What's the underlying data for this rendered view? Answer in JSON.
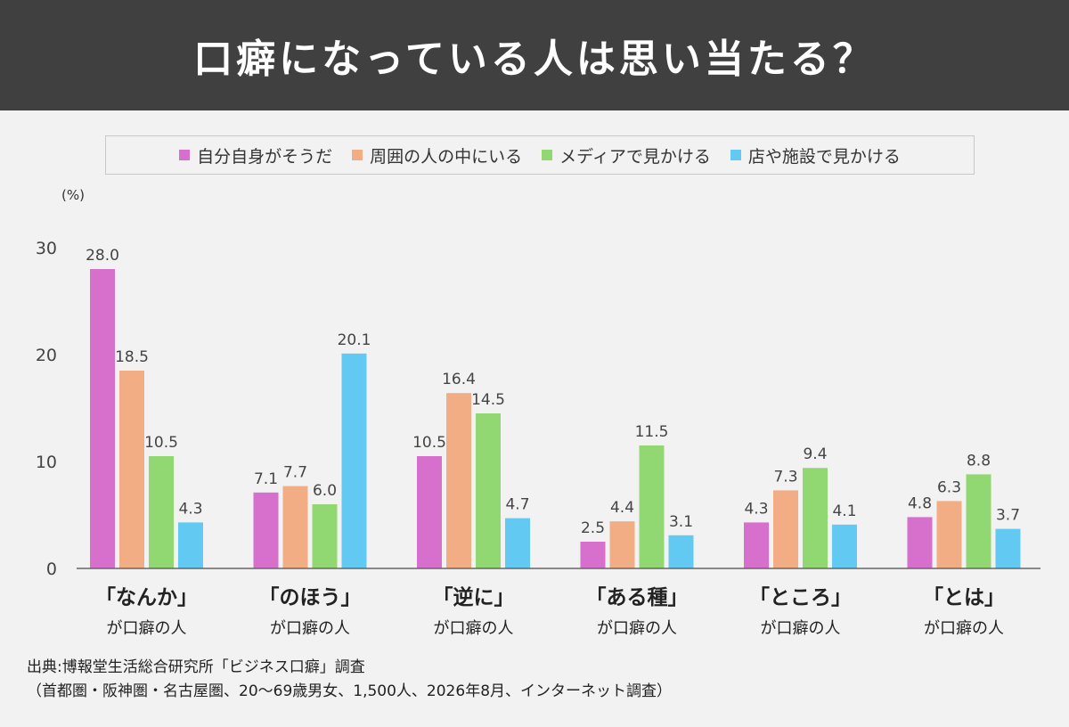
{
  "header": {
    "title": "口癖になっている人は思い当たる？"
  },
  "legend_colors": [
    "#d76fcc",
    "#f2ad85",
    "#92d872",
    "#61c9f2"
  ],
  "chart_data": {
    "type": "bar",
    "yunit": "(%)",
    "ylim": [
      0,
      30
    ],
    "yticks": [
      "0",
      "10",
      "20",
      "30"
    ],
    "categories": [
      {
        "name": "「なんか」",
        "sub": "が口癖の人"
      },
      {
        "name": "「のほう」",
        "sub": "が口癖の人"
      },
      {
        "name": "「逆に」",
        "sub": "が口癖の人"
      },
      {
        "name": "「ある種」",
        "sub": "が口癖の人"
      },
      {
        "name": "「ところ」",
        "sub": "が口癖の人"
      },
      {
        "name": "「とは」",
        "sub": "が口癖の人"
      }
    ],
    "series": [
      {
        "name": "自分自身がそうだ",
        "color": "#d76fcc",
        "values": [
          28.0,
          7.1,
          10.5,
          2.5,
          4.3,
          4.8
        ],
        "labels": [
          "28.0",
          "7.1",
          "10.5",
          "2.5",
          "4.3",
          "4.8"
        ]
      },
      {
        "name": "周囲の人の中にいる",
        "color": "#f2ad85",
        "values": [
          18.5,
          7.7,
          16.4,
          4.4,
          7.3,
          6.3
        ],
        "labels": [
          "18.5",
          "7.7",
          "16.4",
          "4.4",
          "7.3",
          "6.3"
        ]
      },
      {
        "name": "メディアで見かける",
        "color": "#92d872",
        "values": [
          10.5,
          6.0,
          14.5,
          11.5,
          9.4,
          8.8
        ],
        "labels": [
          "10.5",
          "6.0",
          "14.5",
          "11.5",
          "9.4",
          "8.8"
        ]
      },
      {
        "name": "店や施設で見かける",
        "color": "#61c9f2",
        "values": [
          4.3,
          20.1,
          4.7,
          3.1,
          4.1,
          3.7
        ],
        "labels": [
          "4.3",
          "20.1",
          "4.7",
          "3.1",
          "4.1",
          "3.7"
        ]
      }
    ]
  },
  "source": {
    "line1": "出典:博報堂生活総合研究所「ビジネス口癖」調査",
    "line2": "（首都圏・阪神圏・名古屋圏、20〜69歳男女、1,500人、2026年8月、インターネット調査）"
  }
}
